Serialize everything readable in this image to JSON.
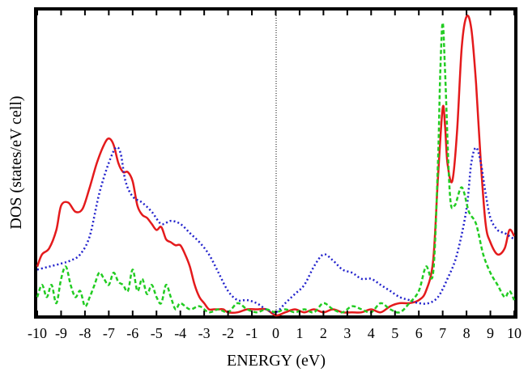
{
  "chart_data": {
    "type": "line",
    "title": "",
    "xlabel": "ENERGY (eV)",
    "ylabel": "DOS (states/eV cell)",
    "xlim": [
      -10,
      10
    ],
    "ylim": [
      0,
      1
    ],
    "xticks": [
      -10,
      -9,
      -8,
      -7,
      -6,
      -5,
      -4,
      -3,
      -2,
      -1,
      0,
      1,
      2,
      3,
      4,
      5,
      6,
      7,
      8,
      9,
      10
    ],
    "y_tick_labels_shown": false,
    "grid": false,
    "legend": "none",
    "reference_line_x": 0,
    "series": [
      {
        "color": "#e41a1c",
        "style": "solid",
        "x": [
          -10,
          -9.8,
          -9.5,
          -9.2,
          -9.0,
          -8.7,
          -8.4,
          -8.1,
          -7.8,
          -7.5,
          -7.2,
          -7.0,
          -6.8,
          -6.6,
          -6.4,
          -6.2,
          -6.0,
          -5.8,
          -5.6,
          -5.4,
          -5.2,
          -5.0,
          -4.8,
          -4.6,
          -4.4,
          -4.2,
          -4.0,
          -3.8,
          -3.6,
          -3.4,
          -3.2,
          -3.0,
          -2.8,
          -2.6,
          -2.4,
          -2.2,
          -2.0,
          -1.6,
          -1.2,
          -0.8,
          -0.4,
          0,
          0.4,
          0.8,
          1.2,
          1.6,
          2.0,
          2.4,
          2.8,
          3.2,
          3.6,
          4.0,
          4.4,
          4.8,
          5.2,
          5.6,
          6.0,
          6.3,
          6.6,
          6.8,
          7.0,
          7.1,
          7.2,
          7.4,
          7.6,
          7.8,
          8.0,
          8.2,
          8.4,
          8.6,
          8.8,
          9.0,
          9.3,
          9.6,
          9.8,
          10
        ],
        "y": [
          0.16,
          0.2,
          0.22,
          0.28,
          0.36,
          0.37,
          0.34,
          0.35,
          0.42,
          0.5,
          0.56,
          0.58,
          0.56,
          0.5,
          0.47,
          0.47,
          0.44,
          0.36,
          0.33,
          0.32,
          0.3,
          0.28,
          0.29,
          0.25,
          0.24,
          0.23,
          0.23,
          0.2,
          0.16,
          0.1,
          0.06,
          0.04,
          0.02,
          0.02,
          0.02,
          0.02,
          0.01,
          0.01,
          0.02,
          0.02,
          0.02,
          0.0,
          0.01,
          0.02,
          0.01,
          0.02,
          0.01,
          0.02,
          0.01,
          0.01,
          0.01,
          0.02,
          0.01,
          0.03,
          0.04,
          0.04,
          0.05,
          0.08,
          0.18,
          0.45,
          0.68,
          0.62,
          0.5,
          0.44,
          0.6,
          0.88,
          0.98,
          0.94,
          0.76,
          0.5,
          0.3,
          0.24,
          0.2,
          0.22,
          0.28,
          0.26
        ]
      },
      {
        "color": "#2222cc",
        "style": "dotted",
        "x": [
          -10,
          -9.5,
          -9.0,
          -8.6,
          -8.2,
          -7.8,
          -7.4,
          -7.0,
          -6.7,
          -6.5,
          -6.3,
          -6.0,
          -5.6,
          -5.2,
          -4.8,
          -4.4,
          -4.0,
          -3.6,
          -3.2,
          -2.8,
          -2.4,
          -2.0,
          -1.6,
          -1.2,
          -0.8,
          -0.4,
          0,
          0.4,
          0.8,
          1.2,
          1.6,
          2.0,
          2.4,
          2.8,
          3.2,
          3.6,
          4.0,
          4.4,
          4.8,
          5.2,
          5.6,
          6.0,
          6.4,
          6.8,
          7.2,
          7.6,
          8.0,
          8.2,
          8.4,
          8.6,
          8.8,
          9.0,
          9.3,
          9.6,
          9.8,
          10
        ],
        "y": [
          0.15,
          0.16,
          0.17,
          0.18,
          0.2,
          0.26,
          0.4,
          0.5,
          0.55,
          0.53,
          0.44,
          0.39,
          0.37,
          0.34,
          0.3,
          0.31,
          0.3,
          0.27,
          0.24,
          0.2,
          0.14,
          0.08,
          0.05,
          0.05,
          0.04,
          0.02,
          0.01,
          0.04,
          0.07,
          0.1,
          0.16,
          0.2,
          0.18,
          0.15,
          0.14,
          0.12,
          0.12,
          0.1,
          0.08,
          0.06,
          0.05,
          0.04,
          0.04,
          0.06,
          0.12,
          0.2,
          0.35,
          0.5,
          0.55,
          0.5,
          0.4,
          0.32,
          0.28,
          0.27,
          0.26,
          0.25
        ]
      },
      {
        "color": "#22cc22",
        "style": "dashed",
        "x": [
          -10,
          -9.8,
          -9.6,
          -9.4,
          -9.2,
          -9.0,
          -8.8,
          -8.6,
          -8.4,
          -8.2,
          -8.0,
          -7.8,
          -7.6,
          -7.4,
          -7.2,
          -7.0,
          -6.8,
          -6.6,
          -6.4,
          -6.2,
          -6.0,
          -5.8,
          -5.6,
          -5.4,
          -5.2,
          -5.0,
          -4.8,
          -4.6,
          -4.4,
          -4.2,
          -4.0,
          -3.6,
          -3.2,
          -2.8,
          -2.4,
          -2.0,
          -1.6,
          -1.2,
          -0.8,
          -0.4,
          0,
          0.4,
          0.8,
          1.2,
          1.6,
          2.0,
          2.4,
          2.8,
          3.2,
          3.6,
          4.0,
          4.4,
          4.8,
          5.2,
          5.6,
          6.0,
          6.3,
          6.6,
          6.8,
          6.9,
          7.0,
          7.1,
          7.3,
          7.5,
          7.8,
          8.1,
          8.4,
          8.7,
          9.0,
          9.3,
          9.6,
          9.8,
          10
        ],
        "y": [
          0.06,
          0.1,
          0.06,
          0.1,
          0.04,
          0.12,
          0.16,
          0.1,
          0.06,
          0.08,
          0.03,
          0.06,
          0.1,
          0.14,
          0.12,
          0.1,
          0.14,
          0.11,
          0.1,
          0.08,
          0.15,
          0.08,
          0.12,
          0.07,
          0.1,
          0.06,
          0.04,
          0.1,
          0.06,
          0.02,
          0.04,
          0.02,
          0.03,
          0.01,
          0.02,
          0.01,
          0.04,
          0.02,
          0.01,
          0.02,
          0.01,
          0.02,
          0.01,
          0.02,
          0.01,
          0.04,
          0.02,
          0.01,
          0.03,
          0.02,
          0.01,
          0.04,
          0.02,
          0.01,
          0.04,
          0.08,
          0.16,
          0.14,
          0.5,
          0.8,
          0.96,
          0.8,
          0.4,
          0.36,
          0.42,
          0.34,
          0.3,
          0.2,
          0.14,
          0.1,
          0.06,
          0.08,
          0.05
        ]
      }
    ]
  }
}
